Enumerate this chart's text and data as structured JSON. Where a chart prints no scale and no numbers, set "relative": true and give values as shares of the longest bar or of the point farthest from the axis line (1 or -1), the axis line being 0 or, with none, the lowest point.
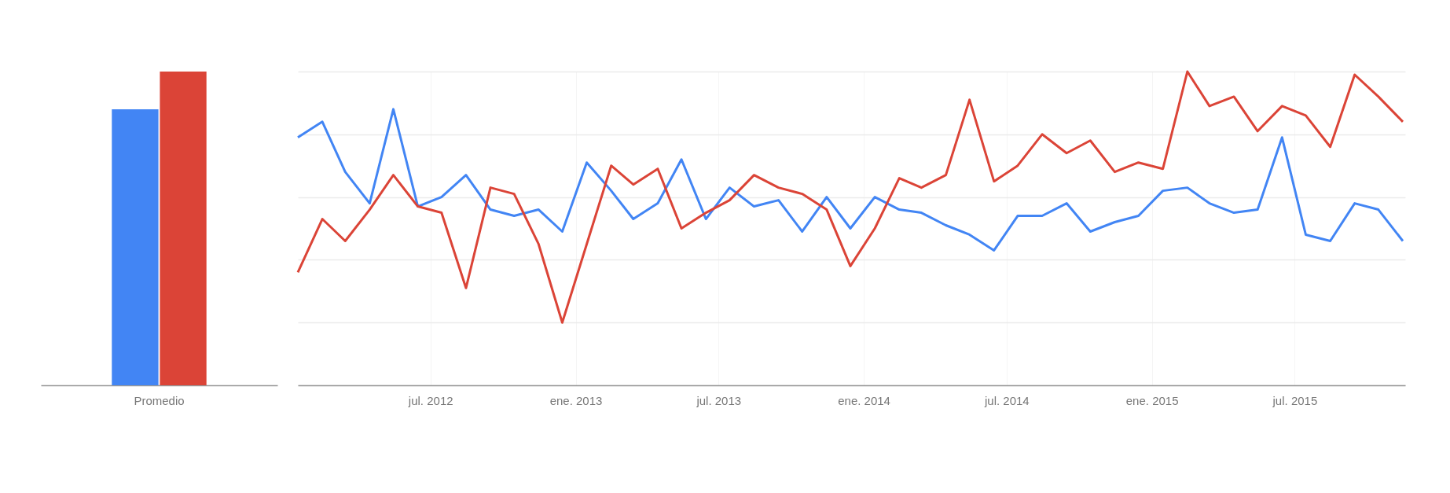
{
  "chart_data": [
    {
      "type": "bar",
      "relative": true,
      "categories": [
        "Promedio"
      ],
      "series": [
        {
          "color": "#4285f4",
          "values": [
            0.88
          ]
        },
        {
          "color": "#db4437",
          "values": [
            1
          ]
        }
      ]
    },
    {
      "type": "line",
      "relative": true,
      "grid": true,
      "x": [
        "2012-01-15",
        "2012-02-15",
        "2012-03-15",
        "2012-04-15",
        "2012-05-15",
        "2012-06-15",
        "2012-07-15",
        "2012-08-15",
        "2012-09-15",
        "2012-10-15",
        "2012-11-15",
        "2012-12-15",
        "2013-01-15",
        "2013-02-15",
        "2013-03-15",
        "2013-04-15",
        "2013-05-15",
        "2013-06-15",
        "2013-07-15",
        "2013-08-15",
        "2013-09-15",
        "2013-10-15",
        "2013-11-15",
        "2013-12-15",
        "2014-01-15",
        "2014-02-15",
        "2014-03-15",
        "2014-04-15",
        "2014-05-15",
        "2014-06-15",
        "2014-07-15",
        "2014-08-15",
        "2014-09-15",
        "2014-10-15",
        "2014-11-15",
        "2014-12-15",
        "2015-01-15",
        "2015-02-15",
        "2015-03-15",
        "2015-04-15",
        "2015-05-15",
        "2015-06-15",
        "2015-07-15",
        "2015-08-15",
        "2015-09-15",
        "2015-10-15",
        "2015-11-15"
      ],
      "xlim": [
        "2012-01-15",
        "2015-11-18"
      ],
      "xticks": [
        {
          "value": "2012-07-01",
          "label": "jul. 2012"
        },
        {
          "value": "2013-01-01",
          "label": "ene. 2013"
        },
        {
          "value": "2013-07-01",
          "label": "jul. 2013"
        },
        {
          "value": "2014-01-01",
          "label": "ene. 2014"
        },
        {
          "value": "2014-07-01",
          "label": "jul. 2014"
        },
        {
          "value": "2015-01-01",
          "label": "ene. 2015"
        },
        {
          "value": "2015-07-01",
          "label": "jul. 2015"
        }
      ],
      "series": [
        {
          "color": "#4285f4",
          "values": [
            0.79,
            0.84,
            0.68,
            0.58,
            0.88,
            0.57,
            0.6,
            0.67,
            0.56,
            0.54,
            0.56,
            0.49,
            0.71,
            0.62,
            0.53,
            0.58,
            0.72,
            0.53,
            0.63,
            0.57,
            0.59,
            0.49,
            0.6,
            0.5,
            0.6,
            0.56,
            0.55,
            0.51,
            0.48,
            0.43,
            0.54,
            0.54,
            0.58,
            0.49,
            0.52,
            0.54,
            0.62,
            0.63,
            0.58,
            0.55,
            0.56,
            0.79,
            0.48,
            0.46,
            0.58,
            0.56,
            0.46
          ]
        },
        {
          "color": "#db4437",
          "values": [
            0.36,
            0.53,
            0.46,
            0.56,
            0.67,
            0.57,
            0.55,
            0.31,
            0.63,
            0.61,
            0.45,
            0.2,
            0.45,
            0.7,
            0.64,
            0.69,
            0.5,
            0.55,
            0.59,
            0.67,
            0.63,
            0.61,
            0.56,
            0.38,
            0.5,
            0.66,
            0.63,
            0.67,
            0.91,
            0.65,
            0.7,
            0.8,
            0.74,
            0.78,
            0.68,
            0.71,
            0.69,
            1.0,
            0.89,
            0.92,
            0.81,
            0.89,
            0.86,
            0.76,
            0.99,
            0.92,
            0.84
          ]
        }
      ]
    }
  ]
}
